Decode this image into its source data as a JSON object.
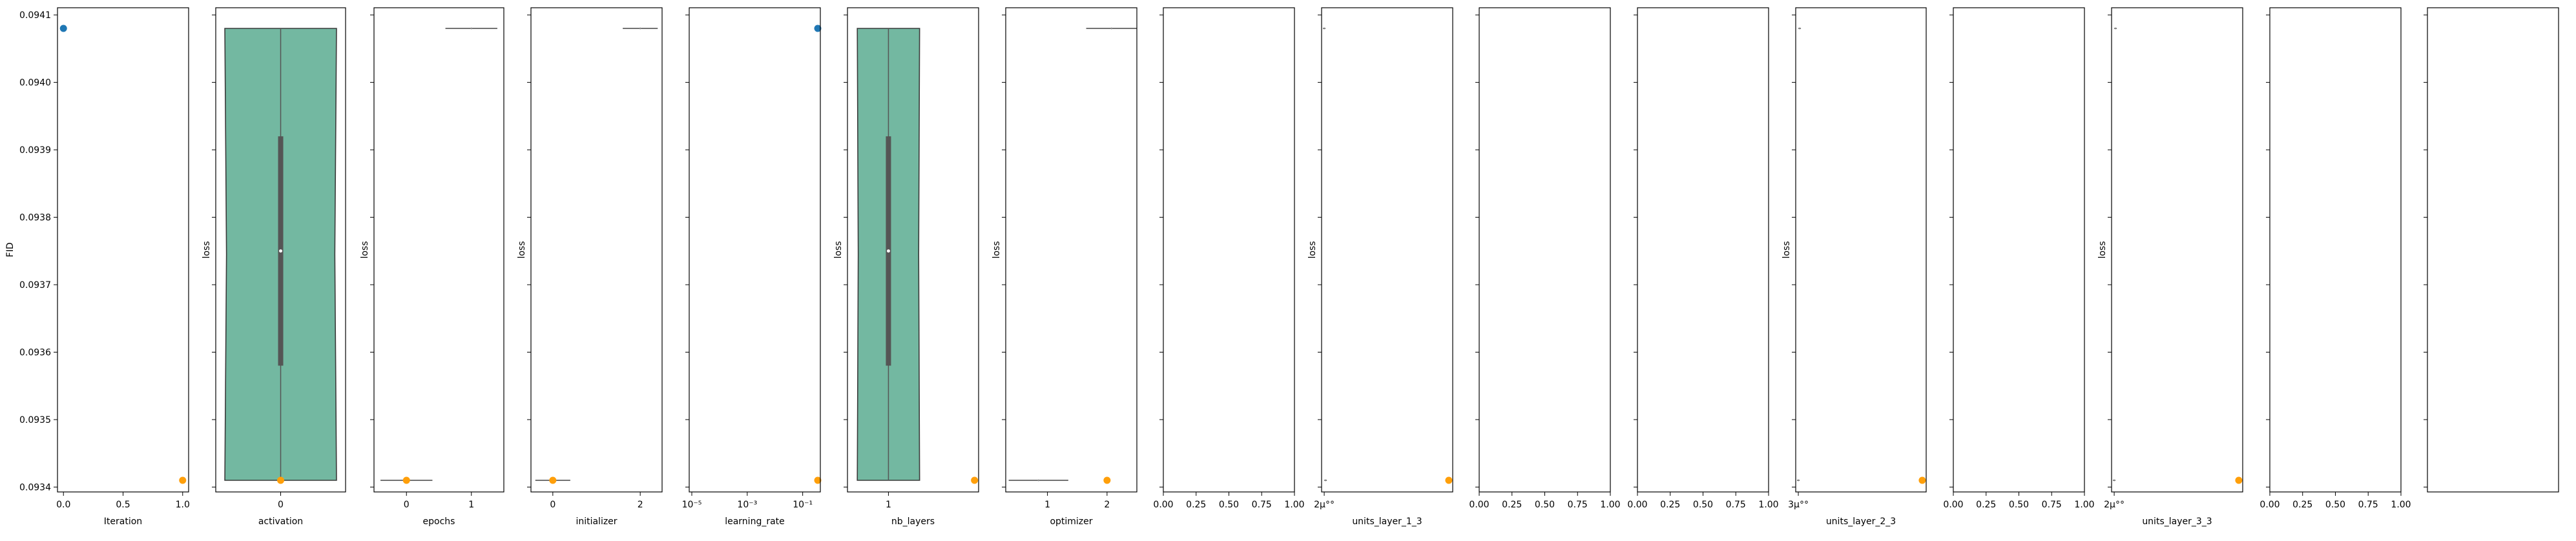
{
  "chart_data": {
    "type": "scatter",
    "shared_y": {
      "ylim": [
        0.09341,
        0.09411
      ],
      "ticks": [
        0.0934,
        0.0935,
        0.0936,
        0.0937,
        0.0938,
        0.0939,
        0.094,
        0.0941
      ],
      "tick_labels": [
        "0.0934",
        "0.0935",
        "0.0936",
        "0.0937",
        "0.0938",
        "0.0939",
        "0.0940",
        "0.0941"
      ]
    },
    "colors": {
      "blue": "#1f77b4",
      "orange": "#ff9f0a",
      "violin": "#73b8a1",
      "violin_edge": "#3a3a3a",
      "box": "#555555"
    },
    "panels": [
      {
        "type": "scatter",
        "xlabel": "Iteration",
        "ylabel": "FID",
        "xlim": [
          -0.05,
          1.05
        ],
        "xticks": [
          0.0,
          0.5,
          1.0
        ],
        "xtick_labels": [
          "0.0",
          "0.5",
          "1.0"
        ],
        "points": [
          {
            "x": 0,
            "y": 0.09408,
            "color": "blue"
          },
          {
            "x": 1,
            "y": 0.09341,
            "color": "orange"
          }
        ]
      },
      {
        "type": "violin",
        "xlabel": "activation",
        "ylabel": "loss",
        "xlim": [
          -0.5,
          0.5
        ],
        "xticks": [
          0
        ],
        "xtick_labels": [
          "0"
        ],
        "violin": {
          "x": 0,
          "min": 0.09341,
          "max": 0.09408,
          "q1": 0.09358,
          "median": 0.09375,
          "q3": 0.09392,
          "half_width": 0.43
        },
        "points": [
          {
            "x": 0,
            "y": 0.09341,
            "color": "orange"
          }
        ]
      },
      {
        "type": "strip",
        "xlabel": "epochs",
        "ylabel": "loss",
        "xlim": [
          -0.5,
          1.5
        ],
        "xticks": [
          0,
          1
        ],
        "xtick_labels": [
          "0",
          "1"
        ],
        "segments": [
          {
            "x0": 0.6,
            "x1": 1.4,
            "y": 0.09408
          },
          {
            "x0": -0.4,
            "x1": 0.4,
            "y": 0.09341
          }
        ],
        "points": [
          {
            "x": 0,
            "y": 0.09341,
            "color": "orange"
          }
        ]
      },
      {
        "type": "strip",
        "xlabel": "initializer",
        "ylabel": "loss",
        "xlim": [
          -0.5,
          2.5
        ],
        "xticks": [
          0,
          2
        ],
        "xtick_labels": [
          "0",
          "2"
        ],
        "segments": [
          {
            "x0": 1.6,
            "x1": 2.4,
            "y": 0.09408
          },
          {
            "x0": -0.4,
            "x1": 0.4,
            "y": 0.09341
          }
        ],
        "points": [
          {
            "x": 0,
            "y": 0.09341,
            "color": "orange"
          }
        ]
      },
      {
        "type": "scatter",
        "xlabel": "learning_rate",
        "ylabel": "",
        "xscale": "log",
        "xlim": [
          1e-05,
          0.35
        ],
        "xticks": [
          1e-05,
          0.001,
          0.1
        ],
        "xtick_labels": [
          "10⁻⁵",
          "10⁻³",
          "10⁻¹"
        ],
        "points": [
          {
            "x": 0.35,
            "y": 0.09408,
            "color": "blue"
          },
          {
            "x": 0.35,
            "y": 0.09341,
            "color": "orange"
          }
        ]
      },
      {
        "type": "violin",
        "xlabel": "nb_layers",
        "ylabel": "loss",
        "xlim": [
          0.5,
          2.1
        ],
        "xticks": [
          1
        ],
        "xtick_labels": [
          "1"
        ],
        "violin": {
          "x": 1,
          "min": 0.09341,
          "max": 0.09408,
          "q1": 0.09358,
          "median": 0.09375,
          "q3": 0.09392,
          "half_width": 0.38
        },
        "points": [
          {
            "x": 2.05,
            "y": 0.09341,
            "color": "orange"
          }
        ]
      },
      {
        "type": "strip",
        "xlabel": "optimizer",
        "ylabel": "loss",
        "xlim": [
          0.3,
          2.5
        ],
        "xticks": [
          1,
          2
        ],
        "xtick_labels": [
          "1",
          "2"
        ],
        "segments": [
          {
            "x0": 1.65,
            "x1": 2.5,
            "y": 0.09408
          },
          {
            "x0": 0.35,
            "x1": 1.35,
            "y": 0.09341
          }
        ],
        "points": [
          {
            "x": 2,
            "y": 0.09341,
            "color": "orange"
          }
        ]
      },
      {
        "type": "empty",
        "xlabel": "",
        "ylabel": "",
        "xlim": [
          0,
          1
        ],
        "xticks": [
          0,
          0.25,
          0.5,
          0.75,
          1.0
        ],
        "xtick_labels": [
          "0.00",
          "0.25",
          "0.50",
          "0.75",
          "1.00"
        ]
      },
      {
        "type": "strip",
        "xlabel": "units_layer_1_3",
        "ylabel": "loss",
        "xlim": [
          0,
          1
        ],
        "xticks": [
          0.02
        ],
        "xtick_labels": [
          "2µ°°"
        ],
        "segments": [
          {
            "x0": 0.01,
            "x1": 0.03,
            "y": 0.09408
          },
          {
            "x0": 0.02,
            "x1": 0.04,
            "y": 0.09341
          }
        ],
        "points": [
          {
            "x": 0.97,
            "y": 0.09341,
            "color": "orange"
          }
        ]
      },
      {
        "type": "empty",
        "xlabel": "",
        "ylabel": "",
        "xlim": [
          0,
          1
        ],
        "xticks": [
          0,
          0.25,
          0.5,
          0.75,
          1.0
        ],
        "xtick_labels": [
          "0.00",
          "0.25",
          "0.50",
          "0.75",
          "1.00"
        ]
      },
      {
        "type": "empty",
        "xlabel": "",
        "ylabel": "",
        "xlim": [
          0,
          1
        ],
        "xticks": [
          0,
          0.25,
          0.5,
          0.75,
          1.0
        ],
        "xtick_labels": [
          "0.00",
          "0.25",
          "0.50",
          "0.75",
          "1.00"
        ]
      },
      {
        "type": "strip",
        "xlabel": "units_layer_2_3",
        "ylabel": "loss",
        "xlim": [
          0,
          1
        ],
        "xticks": [
          0.02
        ],
        "xtick_labels": [
          "3µ°°"
        ],
        "segments": [
          {
            "x0": 0.02,
            "x1": 0.04,
            "y": 0.09408
          },
          {
            "x0": 0.01,
            "x1": 0.03,
            "y": 0.09341
          }
        ],
        "points": [
          {
            "x": 0.97,
            "y": 0.09341,
            "color": "orange"
          }
        ]
      },
      {
        "type": "empty",
        "xlabel": "",
        "ylabel": "",
        "xlim": [
          0,
          1
        ],
        "xticks": [
          0,
          0.25,
          0.5,
          0.75,
          1.0
        ],
        "xtick_labels": [
          "0.00",
          "0.25",
          "0.50",
          "0.75",
          "1.00"
        ]
      },
      {
        "type": "strip",
        "xlabel": "units_layer_3_3",
        "ylabel": "loss",
        "xlim": [
          0,
          1
        ],
        "xticks": [
          0.02
        ],
        "xtick_labels": [
          "2µ°°"
        ],
        "segments": [
          {
            "x0": 0.02,
            "x1": 0.04,
            "y": 0.09408
          },
          {
            "x0": 0.01,
            "x1": 0.03,
            "y": 0.09341
          }
        ],
        "points": [
          {
            "x": 0.97,
            "y": 0.09341,
            "color": "orange"
          }
        ]
      },
      {
        "type": "empty",
        "xlabel": "",
        "ylabel": "",
        "xlim": [
          0,
          1
        ],
        "xticks": [
          0,
          0.25,
          0.5,
          0.75,
          1.0
        ],
        "xtick_labels": [
          "0.00",
          "0.25",
          "0.50",
          "0.75",
          "1.00"
        ]
      },
      {
        "type": "empty",
        "xlabel": "",
        "ylabel": "",
        "xlim": [
          0,
          1
        ],
        "xticks": [],
        "xtick_labels": []
      }
    ]
  }
}
